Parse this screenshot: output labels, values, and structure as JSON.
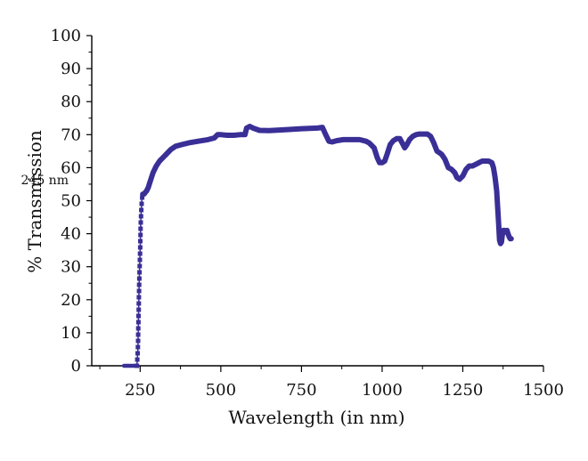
{
  "chart_data": {
    "type": "line",
    "title": "",
    "xlabel": "Wavelength (in nm)",
    "ylabel": "% Transmission",
    "xlim": [
      100,
      1500
    ],
    "ylim": [
      0,
      100
    ],
    "x_ticks": [
      250,
      500,
      750,
      1000,
      1250,
      1500
    ],
    "y_ticks": [
      0,
      10,
      20,
      30,
      40,
      50,
      60,
      70,
      80,
      90,
      100
    ],
    "grid": false,
    "legend": "none",
    "annotations": [
      {
        "text": "245 nm",
        "x": 245,
        "y": 55
      }
    ],
    "series": [
      {
        "color": "#3a2f96",
        "x": [
          200,
          215,
          230,
          240,
          243,
          245,
          247,
          250,
          252,
          255,
          258,
          262,
          266,
          270,
          275,
          280,
          285,
          290,
          300,
          310,
          320,
          330,
          345,
          360,
          380,
          400,
          430,
          460,
          480,
          490,
          500,
          520,
          540,
          560,
          575,
          580,
          590,
          600,
          620,
          650,
          700,
          750,
          800,
          815,
          825,
          835,
          845,
          860,
          880,
          900,
          930,
          950,
          960,
          975,
          985,
          992,
          1000,
          1008,
          1015,
          1025,
          1035,
          1045,
          1055,
          1062,
          1070,
          1077,
          1085,
          1095,
          1105,
          1115,
          1125,
          1140,
          1150,
          1160,
          1170,
          1178,
          1185,
          1195,
          1205,
          1215,
          1225,
          1232,
          1240,
          1250,
          1260,
          1270,
          1280,
          1290,
          1300,
          1310,
          1320,
          1330,
          1340,
          1345,
          1350,
          1355,
          1358,
          1361,
          1364,
          1367,
          1370,
          1373,
          1376,
          1380,
          1383,
          1387,
          1390,
          1394,
          1397,
          1400
        ],
        "y": [
          0,
          0,
          0,
          0,
          5,
          15,
          25,
          35,
          44,
          50,
          52,
          52,
          52.5,
          53,
          54,
          55.5,
          57,
          58.5,
          60.5,
          62,
          63,
          64,
          65.5,
          66.5,
          67,
          67.5,
          68,
          68.5,
          69,
          70,
          70,
          69.8,
          69.8,
          70,
          70,
          72,
          72.5,
          72,
          71.3,
          71.2,
          71.5,
          71.8,
          72,
          72.2,
          70,
          68,
          67.8,
          68.2,
          68.5,
          68.5,
          68.5,
          68,
          67.5,
          66,
          63,
          61.5,
          61.5,
          62,
          64,
          67,
          68.2,
          68.8,
          68.8,
          67.5,
          66,
          67,
          68.5,
          69.5,
          70,
          70.2,
          70.2,
          70.2,
          69.5,
          67.5,
          65,
          64.5,
          64,
          62.5,
          60,
          59.5,
          58.5,
          57,
          56.5,
          57.5,
          59.5,
          60.5,
          60.5,
          61,
          61.5,
          62,
          62,
          62,
          61.5,
          60,
          57,
          53,
          48,
          43,
          38,
          37,
          37.5,
          40,
          41,
          41,
          40.5,
          41,
          40,
          39,
          38.5,
          38.5
        ]
      }
    ]
  }
}
